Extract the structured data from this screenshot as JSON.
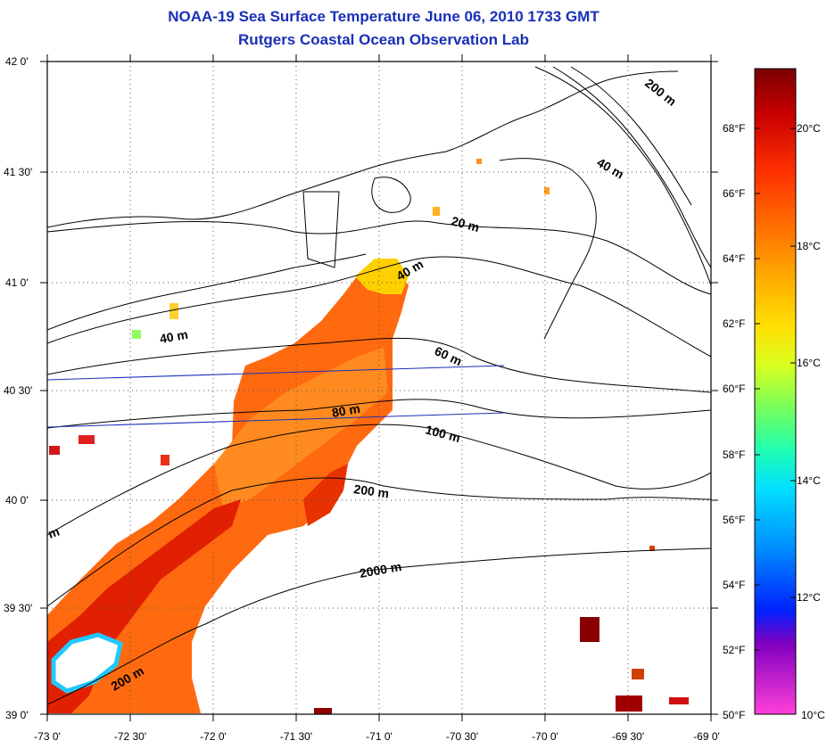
{
  "header": {
    "title": "NOAA-19 Sea Surface Temperature June 06, 2010 1733 GMT",
    "subtitle": "Rutgers Coastal Ocean Observation Lab"
  },
  "axes": {
    "lat_labels": [
      "42 0'",
      "41 30'",
      "41 0'",
      "40 30'",
      "40 0'",
      "39 30'",
      "39 0'"
    ],
    "lon_labels": [
      "-73 0'",
      "-72 30'",
      "-72 0'",
      "-71 30'",
      "-71 0'",
      "-70 30'",
      "-70 0'",
      "-69 30'",
      "-69 0'"
    ]
  },
  "contour_labels": [
    "200 m",
    "40 m",
    "20 m",
    "40 m",
    "40 m",
    "60 m",
    "80 m",
    "100 m",
    "200 m",
    "2000 m",
    "200 m",
    "m"
  ],
  "colorbar": {
    "fahrenheit_labels": [
      "68°F",
      "66°F",
      "64°F",
      "62°F",
      "60°F",
      "58°F",
      "56°F",
      "54°F",
      "52°F",
      "50°F"
    ],
    "celsius_labels": [
      "20°C",
      "18°C",
      "16°C",
      "14°C",
      "12°C",
      "10°C"
    ],
    "colors": [
      "#7a0000",
      "#c80000",
      "#ff3000",
      "#ff7a00",
      "#ffb000",
      "#ffe000",
      "#d8ff20",
      "#70ff60",
      "#20ffb0",
      "#00e0ff",
      "#0090ff",
      "#0020ff",
      "#8000c0",
      "#ff40d8"
    ]
  },
  "chart_data": {
    "type": "heatmap",
    "title": "NOAA-19 Sea Surface Temperature June 06, 2010 1733 GMT",
    "subtitle": "Rutgers Coastal Ocean Observation Lab",
    "x_range": [
      -73.0,
      -69.0
    ],
    "y_range": [
      39.0,
      42.0
    ],
    "color_range_F": [
      50,
      70
    ],
    "color_range_C": [
      10,
      21
    ]
  }
}
